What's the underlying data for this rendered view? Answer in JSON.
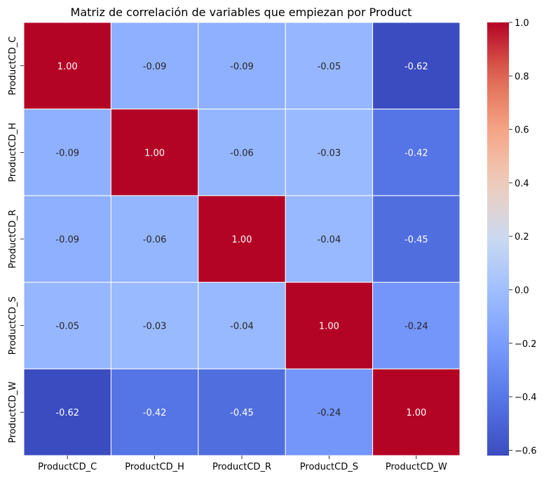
{
  "chart_data": {
    "type": "heatmap",
    "title": "Matriz de correlación de variables que empiezan por Product",
    "xlabel": "",
    "ylabel": "",
    "x_categories": [
      "ProductCD_C",
      "ProductCD_H",
      "ProductCD_R",
      "ProductCD_S",
      "ProductCD_W"
    ],
    "y_categories": [
      "ProductCD_C",
      "ProductCD_H",
      "ProductCD_R",
      "ProductCD_S",
      "ProductCD_W"
    ],
    "values": [
      [
        1.0,
        -0.09,
        -0.09,
        -0.05,
        -0.62
      ],
      [
        -0.09,
        1.0,
        -0.06,
        -0.03,
        -0.42
      ],
      [
        -0.09,
        -0.06,
        1.0,
        -0.04,
        -0.45
      ],
      [
        -0.05,
        -0.03,
        -0.04,
        1.0,
        -0.24
      ],
      [
        -0.62,
        -0.42,
        -0.45,
        -0.24,
        1.0
      ]
    ],
    "value_labels": [
      [
        "1.00",
        "-0.09",
        "-0.09",
        "-0.05",
        "-0.62"
      ],
      [
        "-0.09",
        "1.00",
        "-0.06",
        "-0.03",
        "-0.42"
      ],
      [
        "-0.09",
        "-0.06",
        "1.00",
        "-0.04",
        "-0.45"
      ],
      [
        "-0.05",
        "-0.03",
        "-0.04",
        "1.00",
        "-0.24"
      ],
      [
        "-0.62",
        "-0.42",
        "-0.45",
        "-0.24",
        "1.00"
      ]
    ],
    "colormap": "coolwarm",
    "vmin": -0.62,
    "vmax": 1.0,
    "colorbar": {
      "ticks": [
        1.0,
        0.8,
        0.6,
        0.4,
        0.2,
        0.0,
        -0.2,
        -0.4,
        -0.6
      ],
      "tick_labels": [
        "1.0",
        "0.8",
        "0.6",
        "0.4",
        "0.2",
        "0.0",
        "−0.2",
        "−0.4",
        "−0.6"
      ]
    },
    "grid": false,
    "colorbar_placement": "right"
  }
}
